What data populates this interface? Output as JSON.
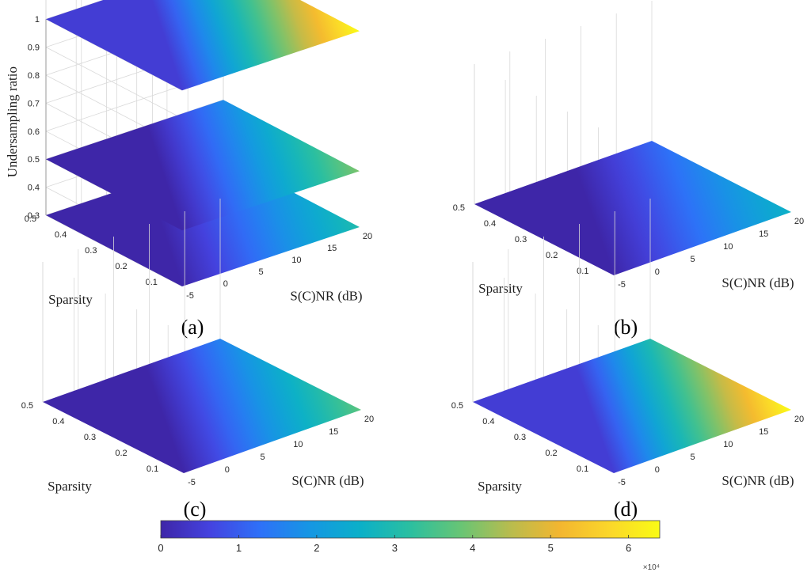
{
  "chart_data": [
    {
      "panel_label": "(a)",
      "type": "surface-3d",
      "xlabel": "S(C)NR (dB)",
      "ylabel": "Sparsity",
      "zlabel": "Undersampling ratio",
      "x_ticks": [
        "-5",
        "0",
        "5",
        "10",
        "15",
        "20"
      ],
      "y_ticks": [
        "0.1",
        "0.2",
        "0.3",
        "0.4",
        "0.5"
      ],
      "z_ticks": [
        "0.3",
        "0.4",
        "0.5",
        "0.6",
        "0.7",
        "0.8",
        "0.9",
        "1"
      ],
      "xlim": [
        -5,
        20
      ],
      "ylim": [
        0.05,
        0.5
      ],
      "zlim": [
        0.3,
        1
      ],
      "grid": true,
      "layers": [
        {
          "z": 0.3,
          "color_range": [
            0,
            30000
          ]
        },
        {
          "z": 0.5,
          "color_range": [
            0,
            40000
          ]
        },
        {
          "z": 1.0,
          "color_range": [
            5000,
            64000
          ]
        }
      ]
    },
    {
      "panel_label": "(b)",
      "type": "surface-3d",
      "xlabel": "S(C)NR (dB)",
      "ylabel": "Sparsity",
      "x_ticks": [
        "-5",
        "0",
        "5",
        "10",
        "15",
        "20"
      ],
      "y_ticks": [
        "0.1",
        "0.2",
        "0.3",
        "0.4",
        "0.5"
      ],
      "xlim": [
        -5,
        20
      ],
      "ylim": [
        0.05,
        0.5
      ],
      "grid": true,
      "layers": [
        {
          "z": 0.3,
          "color_range": [
            0,
            26000
          ]
        }
      ]
    },
    {
      "panel_label": "(c)",
      "type": "surface-3d",
      "xlabel": "S(C)NR (dB)",
      "ylabel": "Sparsity",
      "x_ticks": [
        "-5",
        "0",
        "5",
        "10",
        "15",
        "20"
      ],
      "y_ticks": [
        "0.1",
        "0.2",
        "0.3",
        "0.4",
        "0.5"
      ],
      "xlim": [
        -5,
        20
      ],
      "ylim": [
        0.05,
        0.5
      ],
      "grid": true,
      "layers": [
        {
          "z": 0.5,
          "color_range": [
            0,
            37000
          ]
        }
      ]
    },
    {
      "panel_label": "(d)",
      "type": "surface-3d",
      "xlabel": "S(C)NR (dB)",
      "ylabel": "Sparsity",
      "x_ticks": [
        "-5",
        "0",
        "5",
        "10",
        "15",
        "20"
      ],
      "y_ticks": [
        "0.1",
        "0.2",
        "0.3",
        "0.4",
        "0.5"
      ],
      "xlim": [
        -5,
        20
      ],
      "ylim": [
        0.05,
        0.5
      ],
      "grid": true,
      "layers": [
        {
          "z": 1.0,
          "color_range": [
            5000,
            64000
          ]
        }
      ]
    }
  ],
  "colorbar": {
    "ticks": [
      "0",
      "1",
      "2",
      "3",
      "4",
      "5",
      "6"
    ],
    "tick_values": [
      0,
      10000,
      20000,
      30000,
      40000,
      50000,
      60000
    ],
    "range": [
      0,
      64000
    ],
    "exponent_label": "×10⁴",
    "colormap": "parula",
    "colormap_stops": [
      "#3e26a8",
      "#4443e0",
      "#2e71f8",
      "#1597e3",
      "#0bb0c8",
      "#2bbfa0",
      "#67c575",
      "#b8bc4e",
      "#f3b630",
      "#fbd72a",
      "#f9fb15"
    ]
  }
}
